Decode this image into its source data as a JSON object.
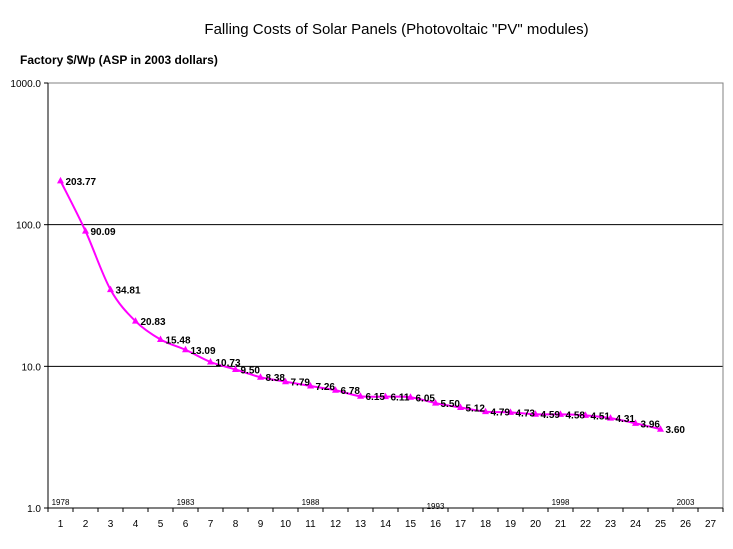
{
  "chart_data": {
    "type": "line",
    "title": "Falling Costs of Solar Panels (Photovoltaic \"PV\" modules)",
    "ylabel": "Factory $/Wp (ASP in 2003 dollars)",
    "xlabel": "",
    "yscale": "log",
    "ylim": [
      1,
      1000
    ],
    "xlim": [
      0.5,
      27.5
    ],
    "y_tick_labels": [
      "1.0",
      "10.0",
      "100.0",
      "1000.0"
    ],
    "y_tick_values": [
      1,
      10,
      100,
      1000
    ],
    "x_tick_values": [
      1,
      2,
      3,
      4,
      5,
      6,
      7,
      8,
      9,
      10,
      11,
      12,
      13,
      14,
      15,
      16,
      17,
      18,
      19,
      20,
      21,
      22,
      23,
      24,
      25,
      26,
      27
    ],
    "grid": "horizontal",
    "year_annotations": [
      {
        "x": 1,
        "label": "1978"
      },
      {
        "x": 6,
        "label": "1983"
      },
      {
        "x": 11,
        "label": "1988"
      },
      {
        "x": 16,
        "label": "1993"
      },
      {
        "x": 21,
        "label": "1998"
      },
      {
        "x": 26,
        "label": "2003"
      }
    ],
    "series": [
      {
        "color": "#ff00ff",
        "marker": "triangle",
        "x": [
          1,
          2,
          3,
          4,
          5,
          6,
          7,
          8,
          9,
          10,
          11,
          12,
          13,
          14,
          15,
          16,
          17,
          18,
          19,
          20,
          21,
          22,
          23,
          24,
          25
        ],
        "values": [
          203.77,
          90.09,
          34.81,
          20.83,
          15.48,
          13.09,
          10.73,
          9.5,
          8.38,
          7.79,
          7.26,
          6.78,
          6.15,
          6.11,
          6.05,
          5.5,
          5.12,
          4.79,
          4.73,
          4.59,
          4.58,
          4.51,
          4.31,
          3.96,
          3.6
        ],
        "labels": [
          "203.77",
          "90.09",
          "34.81",
          "20.83",
          "15.48",
          "13.09",
          "10.73",
          "9.50",
          "8.38",
          "7.79",
          "7.26",
          "6.78",
          "6.15",
          "6.11",
          "6.05",
          "5.50",
          "5.12",
          "4.79",
          "4.73",
          "4.59",
          "4.58",
          "4.51",
          "4.31",
          "3.96",
          "3.60"
        ]
      }
    ]
  }
}
